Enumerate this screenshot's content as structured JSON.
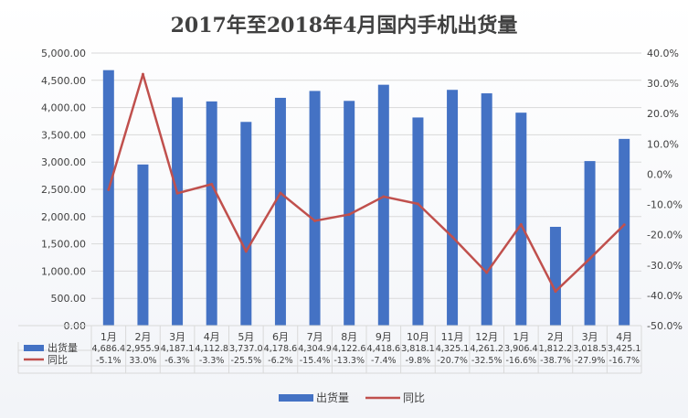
{
  "chart_data": {
    "type": "bar",
    "title": "2017年至2018年4月国内手机出货量",
    "categories": [
      "1月",
      "2月",
      "3月",
      "4月",
      "5月",
      "6月",
      "7月",
      "8月",
      "9月",
      "10月",
      "11月",
      "12月",
      "1月",
      "2月",
      "3月",
      "4月"
    ],
    "series": [
      {
        "name": "出货量",
        "type": "bar",
        "axis": "left",
        "values": [
          4686.4,
          2955.9,
          4187.1,
          4112.8,
          3737.0,
          4178.6,
          4304.9,
          4122.6,
          4418.6,
          3818.1,
          4325.1,
          4261.2,
          3906.4,
          1812.2,
          3018.5,
          3425.1
        ],
        "labels": [
          "4,686.4",
          "2,955.9",
          "4,187.1",
          "4,112.8",
          "3,737.0",
          "4,178.6",
          "4,304.9",
          "4,122.6",
          "4,418.6",
          "3,818.1",
          "4,325.1",
          "4,261.2",
          "3,906.4",
          "1,812.2",
          "3,018.5",
          "3,425.1"
        ]
      },
      {
        "name": "同比",
        "type": "line",
        "axis": "right",
        "values": [
          -5.1,
          33.0,
          -6.3,
          -3.3,
          -25.5,
          -6.2,
          -15.4,
          -13.3,
          -7.4,
          -9.8,
          -20.7,
          -32.5,
          -16.6,
          -38.7,
          -27.9,
          -16.7
        ],
        "labels": [
          "-5.1%",
          "33.0%",
          "-6.3%",
          "-3.3%",
          "-25.5%",
          "-6.2%",
          "-15.4%",
          "-13.3%",
          "-7.4%",
          "-9.8%",
          "-20.7%",
          "-32.5%",
          "-16.6%",
          "-38.7%",
          "-27.9%",
          "-16.7%"
        ]
      }
    ],
    "y_left": {
      "range": [
        0,
        5000
      ],
      "ticks": [
        "0.00",
        "500.00",
        "1,000.00",
        "1,500.00",
        "2,000.00",
        "2,500.00",
        "3,000.00",
        "3,500.00",
        "4,000.00",
        "4,500.00",
        "5,000.00"
      ]
    },
    "y_right": {
      "range": [
        -50,
        40
      ],
      "ticks": [
        "-50.0%",
        "-40.0%",
        "-30.0%",
        "-20.0%",
        "-10.0%",
        "0.0%",
        "10.0%",
        "20.0%",
        "30.0%",
        "40.0%"
      ]
    },
    "grid": true,
    "legend_position": "bottom",
    "data_table": true,
    "colors": {
      "bar": "#4472c4",
      "line": "#c0504d",
      "grid": "#d9d9d9",
      "text": "#404040"
    }
  }
}
